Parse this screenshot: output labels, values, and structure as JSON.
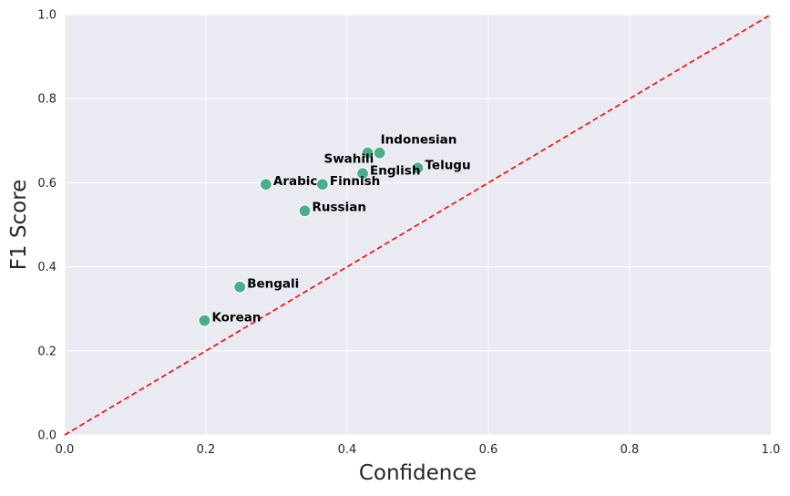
{
  "chart_data": {
    "type": "scatter",
    "title": "",
    "xlabel": "Confidence",
    "ylabel": "F1 Score",
    "xlim": [
      0,
      1
    ],
    "ylim": [
      0,
      1
    ],
    "xticks": [
      "0.0",
      "0.2",
      "0.4",
      "0.6",
      "0.8",
      "1.0"
    ],
    "yticks": [
      "0.0",
      "0.2",
      "0.4",
      "0.6",
      "0.8",
      "1.0"
    ],
    "grid": true,
    "reference_line": {
      "type": "diagonal",
      "from": [
        0,
        0
      ],
      "to": [
        1,
        1
      ],
      "style": "dashed",
      "color": "#ff0000"
    },
    "point_color": "#4aaf88",
    "background_color": "#eaeaf2",
    "points": [
      {
        "label": "Korean",
        "x": 0.198,
        "y": 0.272
      },
      {
        "label": "Bengali",
        "x": 0.248,
        "y": 0.352
      },
      {
        "label": "Arabic",
        "x": 0.285,
        "y": 0.596
      },
      {
        "label": "Russian",
        "x": 0.34,
        "y": 0.533
      },
      {
        "label": "Finnish",
        "x": 0.365,
        "y": 0.596
      },
      {
        "label": "English",
        "x": 0.422,
        "y": 0.622
      },
      {
        "label": "Swahili",
        "x": 0.429,
        "y": 0.671
      },
      {
        "label": "Indonesian",
        "x": 0.446,
        "y": 0.671
      },
      {
        "label": "Telugu",
        "x": 0.5,
        "y": 0.635
      }
    ]
  }
}
